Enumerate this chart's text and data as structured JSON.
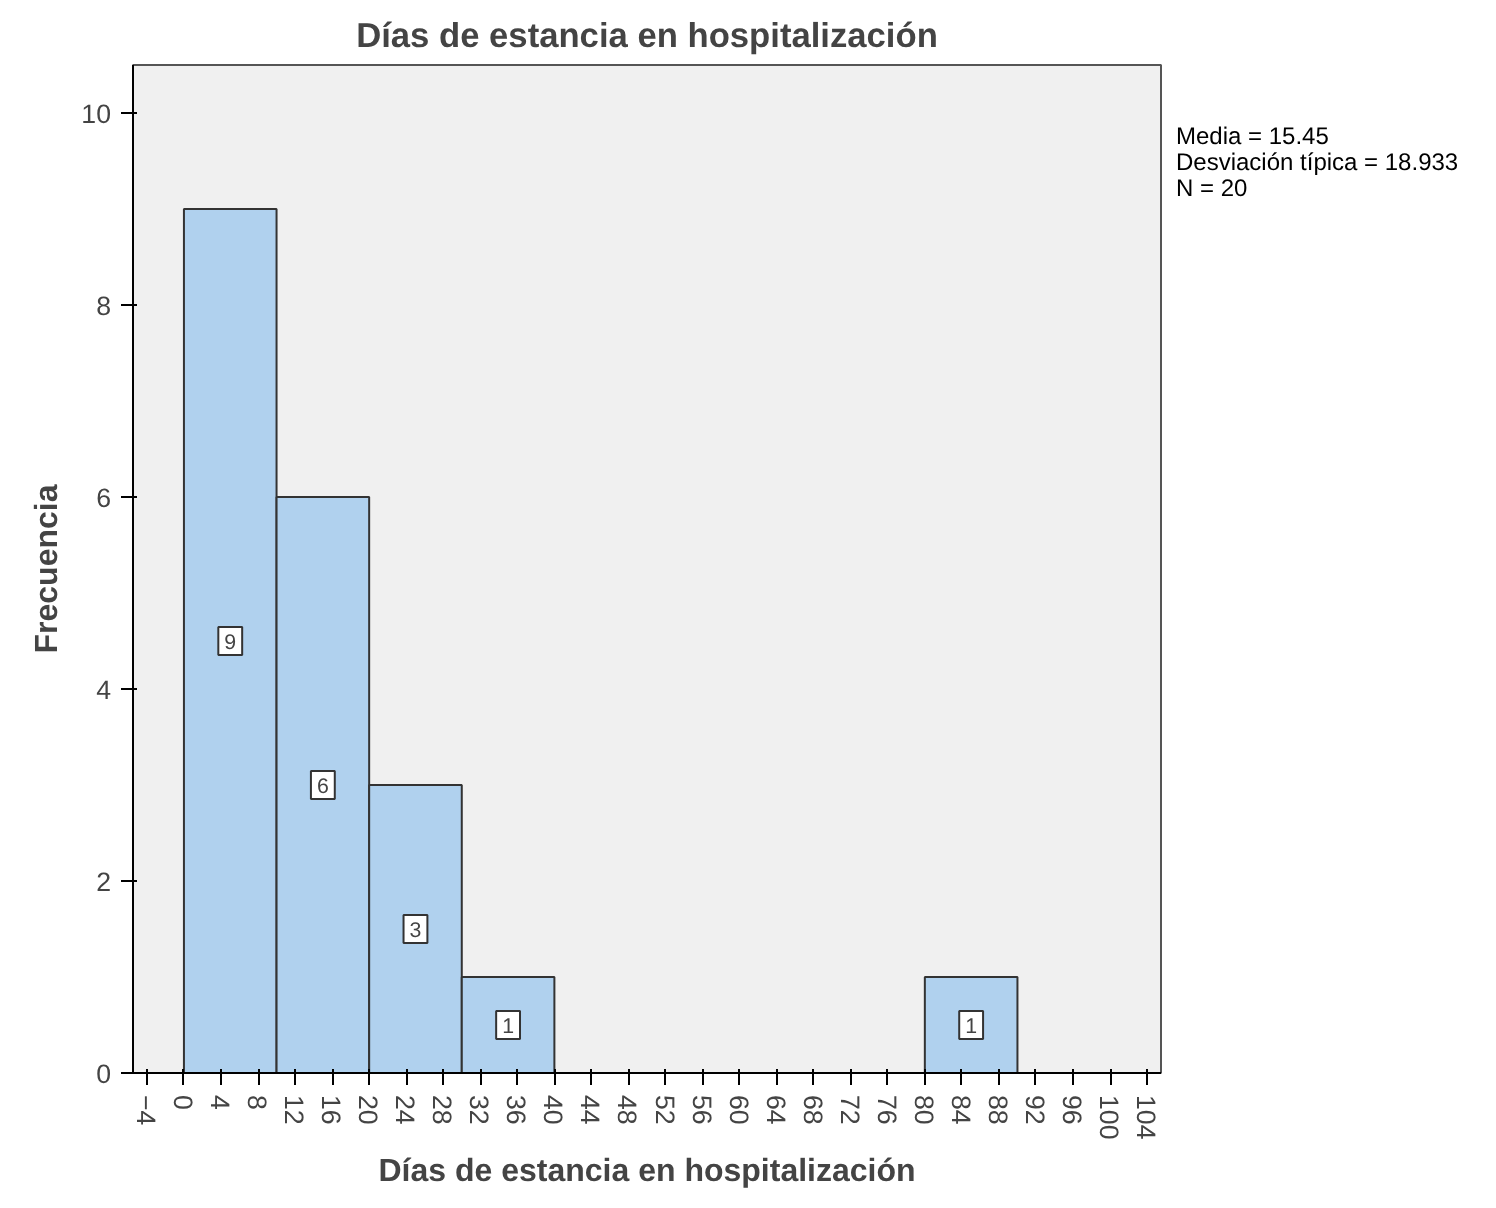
{
  "chart_data": {
    "type": "histogram",
    "title": "Días de estancia en hospitalización",
    "xlabel": "Días de estancia en hospitalización",
    "ylabel": "Frecuencia",
    "bins": [
      0,
      10,
      20,
      30,
      40,
      50,
      60,
      70,
      80,
      90
    ],
    "values": [
      9,
      6,
      3,
      1,
      0,
      0,
      0,
      0,
      1
    ],
    "value_labels": [
      "9",
      "6",
      "3",
      "1",
      null,
      null,
      null,
      null,
      "1"
    ],
    "color": "#b0d1ee",
    "xlim": [
      -5.5,
      105.5
    ],
    "ylim": [
      0,
      10.5
    ],
    "xticks": [
      -4,
      0,
      4,
      8,
      12,
      16,
      20,
      24,
      28,
      32,
      36,
      40,
      44,
      48,
      52,
      56,
      60,
      64,
      68,
      72,
      76,
      80,
      84,
      88,
      92,
      96,
      100,
      104
    ],
    "yticks": [
      0,
      2,
      4,
      6,
      8,
      10
    ],
    "grid": false,
    "annotations": [
      "Media = 15.45",
      "Desviación típica = 18.933",
      "N = 20"
    ]
  }
}
